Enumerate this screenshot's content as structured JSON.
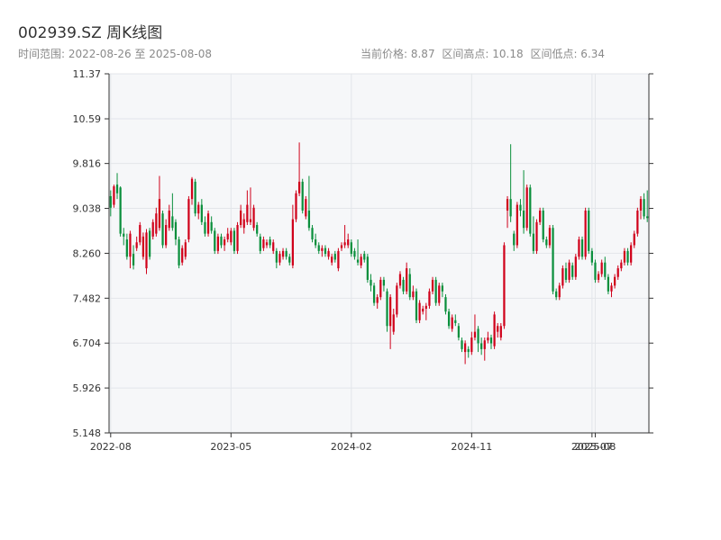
{
  "header": {
    "title": "002939.SZ 周K线图",
    "range_text": "时间范围: 2022-08-26 至 2025-08-08",
    "current_price": "当前价格: 8.87",
    "high_text": "区间高点: 10.18",
    "low_text": "区间低点: 6.34"
  },
  "colors": {
    "up": "#d0021b",
    "down": "#0a8f3c",
    "plot_bg": "#f6f7f9",
    "grid": "#e3e6ea",
    "axis": "#333333"
  },
  "chart_data": {
    "type": "candlestick",
    "title": "002939.SZ 周K线图",
    "ylim": [
      5.148,
      11.37
    ],
    "y_ticks": [
      "11.37",
      "10.59",
      "9.816",
      "9.038",
      "8.260",
      "7.482",
      "6.704",
      "5.926",
      "5.148"
    ],
    "x_ticks": [
      "2022-08",
      "2023-05",
      "2024-02",
      "2024-11",
      "2025-07",
      "2025-08"
    ],
    "x_tick_positions": [
      0,
      37,
      74,
      111,
      148,
      149
    ],
    "grid": true,
    "series": [
      {
        "values": [
          [
            9.25,
            9.05,
            9.35,
            8.9
          ],
          [
            9.1,
            9.42,
            9.45,
            9.05
          ],
          [
            9.45,
            9.3,
            9.65,
            9.2
          ],
          [
            9.4,
            8.6,
            9.42,
            8.55
          ],
          [
            8.6,
            8.55,
            8.7,
            8.4
          ],
          [
            8.5,
            8.2,
            8.6,
            8.15
          ],
          [
            8.2,
            8.6,
            8.65,
            8.0
          ],
          [
            8.25,
            8.05,
            8.4,
            7.98
          ],
          [
            8.35,
            8.45,
            8.55,
            8.3
          ],
          [
            8.45,
            8.75,
            8.8,
            8.4
          ],
          [
            8.2,
            8.55,
            8.62,
            8.15
          ],
          [
            8.0,
            8.62,
            8.68,
            7.9
          ],
          [
            8.65,
            8.2,
            8.7,
            8.15
          ],
          [
            8.55,
            8.8,
            8.85,
            8.5
          ],
          [
            8.6,
            8.95,
            9.05,
            8.55
          ],
          [
            8.7,
            9.2,
            9.6,
            8.65
          ],
          [
            8.95,
            8.4,
            9.0,
            8.35
          ],
          [
            8.4,
            8.75,
            8.85,
            8.35
          ],
          [
            8.7,
            9.0,
            9.1,
            8.65
          ],
          [
            8.9,
            8.7,
            9.3,
            8.65
          ],
          [
            8.8,
            8.5,
            8.85,
            8.4
          ],
          [
            8.5,
            8.05,
            8.55,
            8.0
          ],
          [
            8.1,
            8.35,
            8.4,
            8.05
          ],
          [
            8.2,
            8.45,
            8.5,
            8.15
          ],
          [
            8.5,
            9.2,
            9.25,
            8.45
          ],
          [
            9.2,
            9.55,
            9.58,
            9.1
          ],
          [
            9.5,
            8.95,
            9.55,
            8.9
          ],
          [
            8.95,
            9.1,
            9.15,
            8.85
          ],
          [
            9.1,
            8.8,
            9.2,
            8.75
          ],
          [
            8.8,
            8.6,
            8.9,
            8.55
          ],
          [
            8.6,
            8.95,
            9.0,
            8.55
          ],
          [
            8.8,
            8.65,
            8.9,
            8.6
          ],
          [
            8.65,
            8.3,
            8.7,
            8.25
          ],
          [
            8.3,
            8.55,
            8.6,
            8.25
          ],
          [
            8.55,
            8.4,
            8.6,
            8.35
          ],
          [
            8.4,
            8.5,
            8.55,
            8.3
          ],
          [
            8.5,
            8.6,
            8.7,
            8.45
          ],
          [
            8.45,
            8.65,
            8.7,
            8.4
          ],
          [
            8.65,
            8.3,
            8.7,
            8.25
          ],
          [
            8.3,
            8.75,
            8.8,
            8.25
          ],
          [
            8.75,
            9.0,
            9.1,
            8.7
          ],
          [
            8.7,
            8.85,
            8.95,
            8.6
          ],
          [
            8.8,
            9.1,
            9.35,
            8.75
          ],
          [
            8.8,
            8.85,
            9.4,
            8.75
          ],
          [
            8.7,
            9.05,
            9.1,
            8.65
          ],
          [
            8.75,
            8.6,
            8.8,
            8.55
          ],
          [
            8.55,
            8.3,
            8.6,
            8.25
          ],
          [
            8.35,
            8.5,
            8.55,
            8.3
          ],
          [
            8.4,
            8.45,
            8.5,
            8.35
          ],
          [
            8.5,
            8.4,
            8.55,
            8.35
          ],
          [
            8.3,
            8.45,
            8.5,
            8.25
          ],
          [
            8.3,
            8.1,
            8.35,
            8.0
          ],
          [
            8.1,
            8.25,
            8.3,
            8.05
          ],
          [
            8.2,
            8.3,
            8.35,
            8.15
          ],
          [
            8.3,
            8.2,
            8.35,
            8.15
          ],
          [
            8.2,
            8.1,
            8.25,
            8.05
          ],
          [
            8.05,
            8.85,
            9.1,
            8.0
          ],
          [
            8.85,
            9.3,
            9.35,
            8.8
          ],
          [
            9.3,
            9.5,
            10.18,
            9.25
          ],
          [
            9.5,
            9.0,
            9.55,
            8.95
          ],
          [
            8.9,
            9.2,
            9.25,
            8.85
          ],
          [
            9.0,
            8.7,
            9.6,
            8.65
          ],
          [
            8.7,
            8.5,
            8.75,
            8.45
          ],
          [
            8.5,
            8.4,
            8.6,
            8.35
          ],
          [
            8.4,
            8.3,
            8.45,
            8.25
          ],
          [
            8.3,
            8.35,
            8.4,
            8.2
          ],
          [
            8.35,
            8.25,
            8.4,
            8.2
          ],
          [
            8.2,
            8.3,
            8.35,
            8.15
          ],
          [
            8.1,
            8.2,
            8.25,
            8.05
          ],
          [
            8.25,
            8.15,
            8.3,
            8.1
          ],
          [
            8.0,
            8.3,
            8.35,
            7.95
          ],
          [
            8.35,
            8.4,
            8.45,
            8.3
          ],
          [
            8.4,
            8.45,
            8.75,
            8.35
          ],
          [
            8.4,
            8.5,
            8.6,
            8.35
          ],
          [
            8.45,
            8.25,
            8.5,
            8.2
          ],
          [
            8.3,
            8.2,
            8.35,
            8.15
          ],
          [
            8.15,
            8.1,
            8.5,
            8.05
          ],
          [
            8.05,
            8.2,
            8.25,
            8.0
          ],
          [
            8.25,
            8.15,
            8.3,
            8.1
          ],
          [
            8.2,
            7.8,
            8.25,
            7.75
          ],
          [
            7.8,
            7.7,
            7.9,
            7.6
          ],
          [
            7.7,
            7.4,
            7.75,
            7.35
          ],
          [
            7.4,
            7.5,
            7.55,
            7.3
          ],
          [
            7.5,
            7.8,
            7.85,
            7.45
          ],
          [
            7.8,
            7.7,
            7.85,
            7.6
          ],
          [
            7.6,
            7.0,
            7.65,
            6.9
          ],
          [
            7.0,
            7.5,
            7.55,
            6.6
          ],
          [
            6.9,
            7.2,
            7.3,
            6.85
          ],
          [
            7.2,
            7.7,
            7.75,
            7.15
          ],
          [
            7.7,
            7.9,
            7.95,
            7.65
          ],
          [
            7.8,
            7.6,
            7.85,
            7.55
          ],
          [
            7.6,
            8.0,
            8.1,
            7.55
          ],
          [
            7.9,
            7.5,
            8.0,
            7.45
          ],
          [
            7.5,
            7.6,
            7.7,
            7.45
          ],
          [
            7.6,
            7.1,
            7.65,
            7.05
          ],
          [
            7.1,
            7.4,
            7.45,
            7.05
          ],
          [
            7.25,
            7.3,
            7.35,
            7.2
          ],
          [
            7.3,
            7.35,
            7.4,
            7.1
          ],
          [
            7.35,
            7.6,
            7.65,
            7.3
          ],
          [
            7.6,
            7.8,
            7.85,
            7.55
          ],
          [
            7.8,
            7.4,
            7.85,
            7.35
          ],
          [
            7.4,
            7.7,
            7.75,
            7.35
          ],
          [
            7.7,
            7.6,
            7.75,
            7.5
          ],
          [
            7.5,
            7.25,
            7.55,
            7.2
          ],
          [
            7.25,
            7.0,
            7.3,
            6.95
          ],
          [
            6.95,
            7.15,
            7.2,
            6.9
          ],
          [
            7.1,
            7.05,
            7.2,
            7.0
          ],
          [
            7.0,
            6.8,
            7.05,
            6.75
          ],
          [
            6.75,
            6.6,
            6.8,
            6.55
          ],
          [
            6.55,
            6.7,
            6.75,
            6.34
          ],
          [
            6.6,
            6.55,
            6.65,
            6.45
          ],
          [
            6.55,
            6.8,
            6.9,
            6.5
          ],
          [
            6.8,
            6.9,
            7.2,
            6.75
          ],
          [
            6.95,
            6.7,
            7.0,
            6.55
          ],
          [
            6.7,
            6.6,
            6.8,
            6.5
          ],
          [
            6.6,
            6.75,
            6.8,
            6.4
          ],
          [
            6.75,
            6.8,
            6.9,
            6.7
          ],
          [
            6.8,
            6.7,
            6.85,
            6.6
          ],
          [
            6.65,
            7.2,
            7.25,
            6.6
          ],
          [
            6.9,
            7.0,
            7.05,
            6.8
          ],
          [
            6.8,
            7.0,
            7.05,
            6.75
          ],
          [
            7.0,
            8.4,
            8.45,
            6.95
          ],
          [
            9.0,
            9.2,
            9.25,
            8.7
          ],
          [
            9.2,
            8.9,
            10.15,
            8.8
          ],
          [
            8.6,
            8.4,
            8.65,
            8.3
          ],
          [
            8.4,
            9.1,
            9.15,
            8.35
          ],
          [
            9.1,
            9.0,
            9.2,
            8.9
          ],
          [
            9.0,
            8.7,
            9.7,
            8.6
          ],
          [
            8.7,
            9.4,
            9.45,
            8.65
          ],
          [
            9.4,
            8.6,
            9.45,
            8.55
          ],
          [
            8.6,
            8.3,
            8.9,
            8.25
          ],
          [
            8.3,
            8.8,
            8.85,
            8.25
          ],
          [
            8.8,
            9.0,
            9.05,
            8.75
          ],
          [
            9.0,
            8.5,
            9.05,
            8.45
          ],
          [
            8.5,
            8.4,
            8.55,
            8.35
          ],
          [
            8.4,
            8.7,
            8.75,
            8.35
          ],
          [
            8.7,
            7.6,
            8.75,
            7.55
          ],
          [
            7.6,
            7.5,
            7.65,
            7.45
          ],
          [
            7.5,
            7.7,
            7.75,
            7.45
          ],
          [
            7.7,
            8.0,
            8.05,
            7.65
          ],
          [
            8.0,
            7.8,
            8.1,
            7.75
          ],
          [
            7.8,
            8.1,
            8.15,
            7.75
          ],
          [
            8.05,
            7.85,
            8.1,
            7.8
          ],
          [
            7.85,
            8.2,
            8.25,
            7.8
          ],
          [
            8.2,
            8.5,
            8.55,
            8.15
          ],
          [
            8.5,
            8.2,
            8.55,
            8.15
          ],
          [
            8.2,
            9.0,
            9.05,
            8.15
          ],
          [
            9.0,
            8.3,
            9.05,
            8.25
          ],
          [
            8.3,
            8.1,
            8.35,
            8.05
          ],
          [
            8.1,
            7.8,
            8.15,
            7.75
          ],
          [
            7.8,
            7.9,
            7.95,
            7.75
          ],
          [
            7.9,
            8.1,
            8.15,
            7.85
          ],
          [
            8.1,
            7.85,
            8.2,
            7.8
          ],
          [
            7.85,
            7.6,
            7.9,
            7.55
          ],
          [
            7.6,
            7.7,
            7.75,
            7.5
          ],
          [
            7.7,
            7.85,
            7.9,
            7.65
          ],
          [
            7.85,
            8.0,
            8.05,
            7.8
          ],
          [
            8.0,
            8.1,
            8.15,
            7.95
          ],
          [
            8.1,
            8.3,
            8.35,
            8.05
          ],
          [
            8.3,
            8.1,
            8.35,
            8.05
          ],
          [
            8.1,
            8.4,
            8.45,
            8.05
          ],
          [
            8.4,
            8.6,
            8.65,
            8.35
          ],
          [
            8.6,
            9.0,
            9.05,
            8.55
          ],
          [
            9.0,
            9.2,
            9.25,
            8.85
          ],
          [
            9.2,
            8.9,
            9.3,
            8.85
          ],
          [
            8.9,
            8.87,
            9.35,
            8.8
          ]
        ]
      }
    ]
  }
}
